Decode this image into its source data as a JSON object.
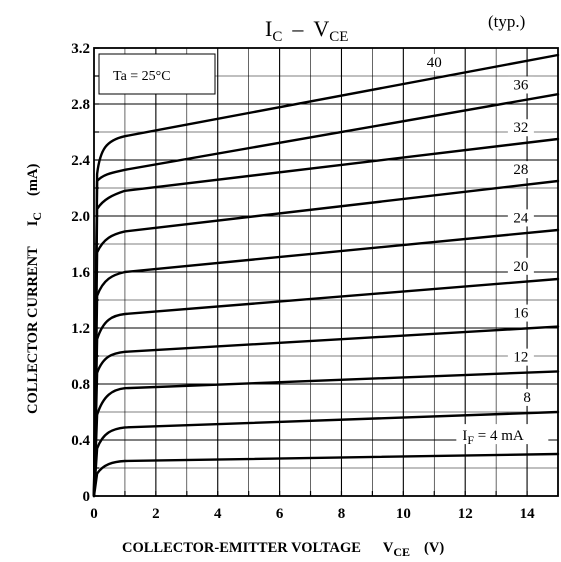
{
  "chart_data": {
    "type": "line",
    "title": {
      "prefix": "I",
      "sub1": "C",
      "dash": "–",
      "mid": "V",
      "sub2": "CE"
    },
    "typ_label": "(typ.)",
    "condition": "Ta = 25°C",
    "xlabel": {
      "text": "COLLECTOR-EMITTER VOLTAGE",
      "symbol": "V",
      "symbol_sub": "CE",
      "unit": "(V)"
    },
    "ylabel": {
      "text": "COLLECTOR CURRENT",
      "symbol": "I",
      "symbol_sub": "C",
      "unit": "(mA)"
    },
    "xlim": [
      0,
      15
    ],
    "ylim": [
      0,
      3.2
    ],
    "x_ticks": [
      0,
      2,
      4,
      6,
      8,
      10,
      12,
      14
    ],
    "y_ticks": [
      {
        "value": 0,
        "label": "0"
      },
      {
        "value": 0.4,
        "label": "0.4"
      },
      {
        "value": 0.8,
        "label": "0.8"
      },
      {
        "value": 1.2,
        "label": "1.2"
      },
      {
        "value": 1.6,
        "label": "1.6"
      },
      {
        "value": 2.0,
        "label": "2.0"
      },
      {
        "value": 2.4,
        "label": "2.4"
      },
      {
        "value": 2.8,
        "label": "2.8"
      },
      {
        "value": 3.2,
        "label": "3.2"
      }
    ],
    "grid": true,
    "series": [
      {
        "name": "4",
        "label": "I",
        "label_sub": "F",
        "label_rest": " = 4 mA",
        "x": [
          0,
          0.1,
          0.3,
          0.6,
          1,
          15
        ],
        "y": [
          0,
          0.16,
          0.225,
          0.245,
          0.25,
          0.3
        ]
      },
      {
        "name": "8",
        "label": "8",
        "x": [
          0,
          0.1,
          0.3,
          0.6,
          1,
          15
        ],
        "y": [
          0,
          0.34,
          0.455,
          0.48,
          0.49,
          0.6
        ]
      },
      {
        "name": "12",
        "label": "12",
        "x": [
          0,
          0.1,
          0.3,
          0.6,
          1,
          15
        ],
        "y": [
          0,
          0.58,
          0.72,
          0.76,
          0.77,
          0.89
        ]
      },
      {
        "name": "16",
        "label": "16",
        "x": [
          0,
          0.1,
          0.3,
          0.6,
          1,
          15
        ],
        "y": [
          0,
          0.88,
          1.0,
          1.02,
          1.03,
          1.21
        ]
      },
      {
        "name": "20",
        "label": "20",
        "x": [
          0,
          0.1,
          0.3,
          0.6,
          1,
          15
        ],
        "y": [
          0,
          1.12,
          1.26,
          1.29,
          1.3,
          1.55
        ]
      },
      {
        "name": "24",
        "label": "24",
        "x": [
          0,
          0.1,
          0.3,
          0.6,
          1,
          15
        ],
        "y": [
          0,
          1.43,
          1.55,
          1.58,
          1.6,
          1.9
        ]
      },
      {
        "name": "28",
        "label": "28",
        "x": [
          0,
          0.1,
          0.3,
          0.6,
          1,
          15
        ],
        "y": [
          0,
          1.74,
          1.84,
          1.87,
          1.89,
          2.25
        ]
      },
      {
        "name": "32",
        "label": "32",
        "x": [
          0,
          0.1,
          0.3,
          0.6,
          1,
          15
        ],
        "y": [
          0,
          2.05,
          2.12,
          2.15,
          2.18,
          2.55
        ]
      },
      {
        "name": "36",
        "label": "36",
        "x": [
          0,
          0.1,
          0.3,
          0.6,
          1,
          15
        ],
        "y": [
          0,
          2.25,
          2.3,
          2.31,
          2.33,
          2.87
        ]
      },
      {
        "name": "40",
        "label": "40",
        "x": [
          0,
          0.1,
          0.2,
          0.4,
          1,
          15
        ],
        "y": [
          0,
          2.3,
          2.48,
          2.54,
          2.57,
          3.15
        ]
      }
    ]
  }
}
